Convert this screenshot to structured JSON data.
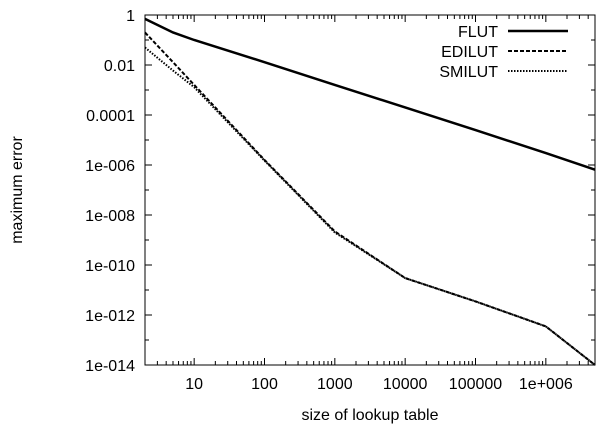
{
  "chart_data": {
    "type": "line",
    "xlabel": "size of lookup table",
    "ylabel": "maximum error",
    "x_scale": "log",
    "y_scale": "log",
    "xlim": [
      2,
      5000000
    ],
    "ylim": [
      1e-14,
      1
    ],
    "grid": false,
    "legend_position": "top-right",
    "x_ticks": [
      {
        "value": 10,
        "label": "10"
      },
      {
        "value": 100,
        "label": "100"
      },
      {
        "value": 1000,
        "label": "1000"
      },
      {
        "value": 10000,
        "label": "10000"
      },
      {
        "value": 100000,
        "label": "100000"
      },
      {
        "value": 1000000,
        "label": "1e+006"
      }
    ],
    "y_ticks": [
      {
        "value": 1,
        "label": "1"
      },
      {
        "value": 0.01,
        "label": "0.01"
      },
      {
        "value": 0.0001,
        "label": "0.0001"
      },
      {
        "value": 1e-06,
        "label": "1e-006"
      },
      {
        "value": 1e-08,
        "label": "1e-008"
      },
      {
        "value": 1e-10,
        "label": "1e-010"
      },
      {
        "value": 1e-12,
        "label": "1e-012"
      },
      {
        "value": 1e-14,
        "label": "1e-014"
      }
    ],
    "series": [
      {
        "name": "FLUT",
        "style": "solid",
        "color": "#000000",
        "points": [
          [
            2,
            0.7
          ],
          [
            5,
            0.2
          ],
          [
            10,
            0.1
          ],
          [
            100,
            0.013
          ],
          [
            1000,
            0.0016
          ],
          [
            10000,
            0.0002
          ],
          [
            100000,
            2.5e-05
          ],
          [
            1000000,
            3e-06
          ],
          [
            5000000,
            6.5e-07
          ]
        ]
      },
      {
        "name": "EDILUT",
        "style": "dashed",
        "color": "#000000",
        "points": [
          [
            2,
            0.2
          ],
          [
            5,
            0.013
          ],
          [
            10,
            0.0016
          ],
          [
            100,
            1.6e-06
          ],
          [
            1000,
            2.2e-09
          ],
          [
            10000,
            3e-11
          ],
          [
            100000,
            3.5e-12
          ],
          [
            1000000,
            3.5e-13
          ],
          [
            5000000,
            1e-14
          ]
        ]
      },
      {
        "name": "SMILUT",
        "style": "dotted",
        "color": "#000000",
        "points": [
          [
            2,
            0.05
          ],
          [
            5,
            0.006
          ],
          [
            10,
            0.0013
          ],
          [
            100,
            1.5e-06
          ],
          [
            1000,
            2e-09
          ],
          [
            10000,
            3e-11
          ],
          [
            100000,
            3.5e-12
          ],
          [
            1000000,
            3.5e-13
          ],
          [
            5000000,
            1e-14
          ]
        ]
      }
    ]
  }
}
